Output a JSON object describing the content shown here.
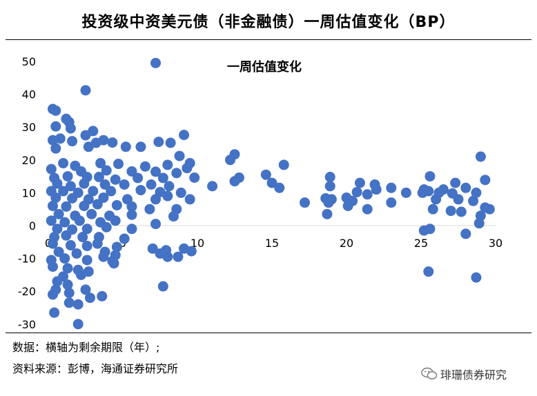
{
  "header": {
    "title": "投资级中资美元债（非金融债）一周估值变化（BP）"
  },
  "footer": {
    "note_source_axis": "数据：横轴为剩余期限（年）;",
    "note_source": "资料来源：彭博，海通证券研究所",
    "watermark": "琲珊债券研究"
  },
  "colors": {
    "marker": "#4472c4",
    "axis": "#d9d9d9"
  },
  "chart_data": {
    "type": "scatter",
    "title": "一周估值变化",
    "xlabel": "",
    "ylabel": "",
    "xlim": [
      0,
      30
    ],
    "ylim": [
      -30,
      50
    ],
    "x_ticks": [
      "0",
      "5",
      "10",
      "15",
      "20",
      "25",
      "30"
    ],
    "y_ticks": [
      "50",
      "40",
      "30",
      "20",
      "10",
      "0",
      "-10",
      "-20",
      "-30"
    ],
    "grid": false,
    "legend": "none",
    "points": [
      [
        7.2,
        49.5
      ],
      [
        2.5,
        41.2
      ],
      [
        0.3,
        35.5
      ],
      [
        0.5,
        35.0
      ],
      [
        1.2,
        32.5
      ],
      [
        1.4,
        31.5
      ],
      [
        0.5,
        30.2
      ],
      [
        1.5,
        29.6
      ],
      [
        3.0,
        28.8
      ],
      [
        2.5,
        27.5
      ],
      [
        9.1,
        27.6
      ],
      [
        0.8,
        26.5
      ],
      [
        0.3,
        26.0
      ],
      [
        1.6,
        25.7
      ],
      [
        3.2,
        25.2
      ],
      [
        3.7,
        26.0
      ],
      [
        4.3,
        25.3
      ],
      [
        7.4,
        25.5
      ],
      [
        8.2,
        25.2
      ],
      [
        0.5,
        23.5
      ],
      [
        2.7,
        24.0
      ],
      [
        5.2,
        24.0
      ],
      [
        6.2,
        24.0
      ],
      [
        12.5,
        21.7
      ],
      [
        12.2,
        20.0
      ],
      [
        8.8,
        21.2
      ],
      [
        29.0,
        21.0
      ],
      [
        15.8,
        18.5
      ],
      [
        1.0,
        19.0
      ],
      [
        1.8,
        18.2
      ],
      [
        3.5,
        19.0
      ],
      [
        4.7,
        18.8
      ],
      [
        6.5,
        18.0
      ],
      [
        8.0,
        18.5
      ],
      [
        9.5,
        19.0
      ],
      [
        0.2,
        17.2
      ],
      [
        2.2,
        16.5
      ],
      [
        3.9,
        16.8
      ],
      [
        5.6,
        16.5
      ],
      [
        7.2,
        16.4
      ],
      [
        8.6,
        16.0
      ],
      [
        9.3,
        17.5
      ],
      [
        0.4,
        14.5
      ],
      [
        1.3,
        15.0
      ],
      [
        2.6,
        14.8
      ],
      [
        3.4,
        14.8
      ],
      [
        4.5,
        14.0
      ],
      [
        6.0,
        14.5
      ],
      [
        7.7,
        14.5
      ],
      [
        9.8,
        14.6
      ],
      [
        12.8,
        14.6
      ],
      [
        14.6,
        15.5
      ],
      [
        12.5,
        13.5
      ],
      [
        15.0,
        13.0
      ],
      [
        18.9,
        14.8
      ],
      [
        25.6,
        15.0
      ],
      [
        29.3,
        13.9
      ],
      [
        0.6,
        12.8
      ],
      [
        1.5,
        12.0
      ],
      [
        2.4,
        12.8
      ],
      [
        3.8,
        12.5
      ],
      [
        5.1,
        12.5
      ],
      [
        6.9,
        12.5
      ],
      [
        8.1,
        12.0
      ],
      [
        11.0,
        12.0
      ],
      [
        15.5,
        11.5
      ],
      [
        18.9,
        12.0
      ],
      [
        20.9,
        13.0
      ],
      [
        21.9,
        12.5
      ],
      [
        23.0,
        11.5
      ],
      [
        25.2,
        11.0
      ],
      [
        26.5,
        11.0
      ],
      [
        27.3,
        13.0
      ],
      [
        28.0,
        11.5
      ],
      [
        0.2,
        10.5
      ],
      [
        1.0,
        10.5
      ],
      [
        2.0,
        10.0
      ],
      [
        3.0,
        10.5
      ],
      [
        4.2,
        10.5
      ],
      [
        6.2,
        10.8
      ],
      [
        7.5,
        10.2
      ],
      [
        8.9,
        10.0
      ],
      [
        20.7,
        10.2
      ],
      [
        21.4,
        9.5
      ],
      [
        22.0,
        11.0
      ],
      [
        24.0,
        10.0
      ],
      [
        25.1,
        10.0
      ],
      [
        25.5,
        10.5
      ],
      [
        26.2,
        10.0
      ],
      [
        27.1,
        9.8
      ],
      [
        28.7,
        10.0
      ],
      [
        0.5,
        8.5
      ],
      [
        1.6,
        8.3
      ],
      [
        2.7,
        8.0
      ],
      [
        3.7,
        8.5
      ],
      [
        5.3,
        8.0
      ],
      [
        7.2,
        8.0
      ],
      [
        8.0,
        9.0
      ],
      [
        9.5,
        8.0
      ],
      [
        18.6,
        8.3
      ],
      [
        19.0,
        8.0
      ],
      [
        20.0,
        8.5
      ],
      [
        20.4,
        7.5
      ],
      [
        23.0,
        7.0
      ],
      [
        26.0,
        8.0
      ],
      [
        27.5,
        8.0
      ],
      [
        28.5,
        7.5
      ],
      [
        17.2,
        7.0
      ],
      [
        18.8,
        7.0
      ],
      [
        0.3,
        6.0
      ],
      [
        1.2,
        5.8
      ],
      [
        2.4,
        6.0
      ],
      [
        3.3,
        6.5
      ],
      [
        4.6,
        6.2
      ],
      [
        5.6,
        5.8
      ],
      [
        6.8,
        5.0
      ],
      [
        8.6,
        5.0
      ],
      [
        20.1,
        6.0
      ],
      [
        21.4,
        5.0
      ],
      [
        25.8,
        5.0
      ],
      [
        27.0,
        4.5
      ],
      [
        27.7,
        4.2
      ],
      [
        29.3,
        5.5
      ],
      [
        29.6,
        5.0
      ],
      [
        18.7,
        3.5
      ],
      [
        29.0,
        3.0
      ],
      [
        0.7,
        3.5
      ],
      [
        1.8,
        3.0
      ],
      [
        2.9,
        3.5
      ],
      [
        4.1,
        3.0
      ],
      [
        5.6,
        3.3
      ],
      [
        8.4,
        2.8
      ],
      [
        0.2,
        1.5
      ],
      [
        1.1,
        1.0
      ],
      [
        2.1,
        1.5
      ],
      [
        3.5,
        1.0
      ],
      [
        4.5,
        1.5
      ],
      [
        7.2,
        0.5
      ],
      [
        28.9,
        0.7
      ],
      [
        0.6,
        -1.0
      ],
      [
        1.6,
        -1.2
      ],
      [
        2.6,
        -1.0
      ],
      [
        3.9,
        -0.5
      ],
      [
        5.6,
        -1.0
      ],
      [
        25.2,
        -1.5
      ],
      [
        25.6,
        -1.0
      ],
      [
        28.0,
        -2.5
      ],
      [
        0.4,
        -3.5
      ],
      [
        1.2,
        -3.0
      ],
      [
        2.3,
        -3.5
      ],
      [
        3.4,
        -3.5
      ],
      [
        5.1,
        -4.0
      ],
      [
        0.3,
        -5.5
      ],
      [
        1.5,
        -6.0
      ],
      [
        2.6,
        -6.2
      ],
      [
        3.3,
        -5.5
      ],
      [
        4.6,
        -6.5
      ],
      [
        7.0,
        -7.0
      ],
      [
        7.9,
        -7.5
      ],
      [
        9.1,
        -7.0
      ],
      [
        9.6,
        -7.8
      ],
      [
        0.7,
        -8.0
      ],
      [
        1.9,
        -8.5
      ],
      [
        3.8,
        -8.0
      ],
      [
        4.5,
        -9.0
      ],
      [
        7.5,
        -8.5
      ],
      [
        8.0,
        -9.5
      ],
      [
        8.7,
        -9.5
      ],
      [
        0.2,
        -10.5
      ],
      [
        1.1,
        -10.0
      ],
      [
        2.6,
        -10.5
      ],
      [
        3.7,
        -9.5
      ],
      [
        4.3,
        -10.8
      ],
      [
        0.3,
        -12.5
      ],
      [
        1.3,
        -13.0
      ],
      [
        2.0,
        -13.5
      ],
      [
        2.7,
        -14.0
      ],
      [
        4.4,
        -11.5
      ],
      [
        25.5,
        -14.0
      ],
      [
        1.0,
        -15.5
      ],
      [
        2.2,
        -15.0
      ],
      [
        28.7,
        -15.8
      ],
      [
        0.6,
        -17.0
      ],
      [
        1.3,
        -18.0
      ],
      [
        7.7,
        -18.5
      ],
      [
        0.5,
        -19.5
      ],
      [
        1.4,
        -20.5
      ],
      [
        2.5,
        -19.5
      ],
      [
        0.3,
        -21.0
      ],
      [
        2.8,
        -22.0
      ],
      [
        3.6,
        -21.5
      ],
      [
        1.4,
        -23.5
      ],
      [
        2.0,
        -24.0
      ],
      [
        0.4,
        -26.5
      ],
      [
        2.0,
        -30.0
      ]
    ]
  }
}
